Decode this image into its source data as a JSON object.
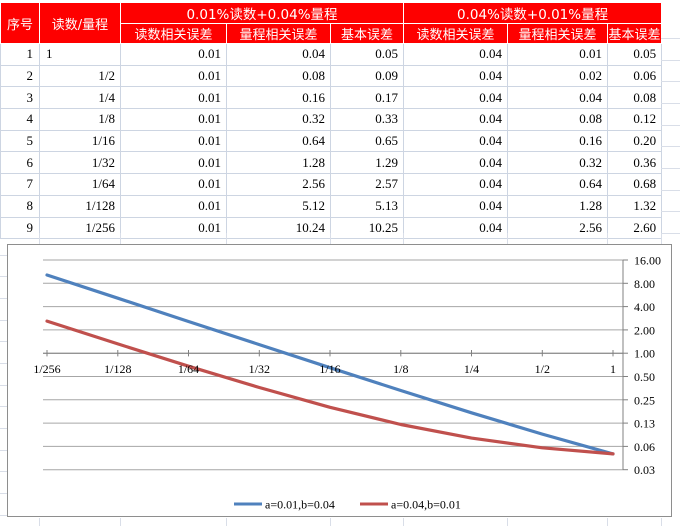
{
  "app": {
    "kind": "spreadsheet-with-embedded-chart"
  },
  "colors": {
    "header_bg": "#FE0000",
    "header_text": "#FFFFFF",
    "cell_text": "#000000",
    "grid_border": "#CDD5E2",
    "sheet_gridline": "#D9DEE8",
    "chart_border": "#8E8E8E",
    "chart_gridline": "#A6A6A6",
    "chart_axis": "#808080",
    "series1": "#4F81BD",
    "series2": "#C0504D"
  },
  "table": {
    "col_headers": {
      "seq": "序号",
      "ratio": "读数/量程",
      "group1": "0.01%读数+0.04%量程",
      "group2": "0.04%读数+0.01%量程",
      "sub": [
        "读数相关误差",
        "量程相关误差",
        "基本误差",
        "读数相关误差",
        "量程相关误差",
        "基本误差"
      ]
    },
    "rows": [
      [
        "1",
        "1",
        "0.01",
        "0.04",
        "0.05",
        "0.04",
        "0.01",
        "0.05"
      ],
      [
        "2",
        "1/2",
        "0.01",
        "0.08",
        "0.09",
        "0.04",
        "0.02",
        "0.06"
      ],
      [
        "3",
        "1/4",
        "0.01",
        "0.16",
        "0.17",
        "0.04",
        "0.04",
        "0.08"
      ],
      [
        "4",
        "1/8",
        "0.01",
        "0.32",
        "0.33",
        "0.04",
        "0.08",
        "0.12"
      ],
      [
        "5",
        "1/16",
        "0.01",
        "0.64",
        "0.65",
        "0.04",
        "0.16",
        "0.20"
      ],
      [
        "6",
        "1/32",
        "0.01",
        "1.28",
        "1.29",
        "0.04",
        "0.32",
        "0.36"
      ],
      [
        "7",
        "1/64",
        "0.01",
        "2.56",
        "2.57",
        "0.04",
        "0.64",
        "0.68"
      ],
      [
        "8",
        "1/128",
        "0.01",
        "5.12",
        "5.13",
        "0.04",
        "1.28",
        "1.32"
      ],
      [
        "9",
        "1/256",
        "0.01",
        "10.24",
        "10.25",
        "0.04",
        "2.56",
        "2.60"
      ]
    ]
  },
  "chart_data": {
    "type": "line",
    "categories": [
      "1/256",
      "1/128",
      "1/64",
      "1/32",
      "1/16",
      "1/8",
      "1/4",
      "1/2",
      "1"
    ],
    "series": [
      {
        "name": "a=0.01,b=0.04",
        "color": "#4F81BD",
        "values": [
          10.25,
          5.13,
          2.57,
          1.29,
          0.65,
          0.33,
          0.17,
          0.09,
          0.05
        ]
      },
      {
        "name": "a=0.04,b=0.01",
        "color": "#C0504D",
        "values": [
          2.6,
          1.32,
          0.68,
          0.36,
          0.2,
          0.12,
          0.08,
          0.06,
          0.05
        ]
      }
    ],
    "title": "",
    "xlabel": "",
    "ylabel": "",
    "y_axis": {
      "position": "right",
      "scale": "log2",
      "ylim": [
        0.03125,
        16
      ],
      "ticks": [
        16,
        8,
        4,
        2,
        1,
        0.5,
        0.25,
        0.125,
        0.0625,
        0.03125
      ],
      "tick_labels": [
        "16.00",
        "8.00",
        "4.00",
        "2.00",
        "1.00",
        "0.50",
        "0.25",
        "0.13",
        "0.06",
        "0.03"
      ]
    },
    "x_axis_cross": 1,
    "grid": "horizontal-only",
    "legend_position": "bottom"
  }
}
